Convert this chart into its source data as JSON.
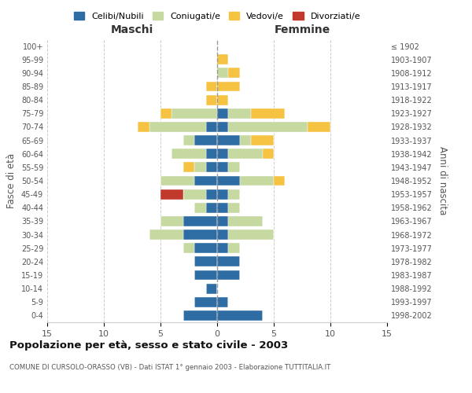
{
  "age_groups": [
    "0-4",
    "5-9",
    "10-14",
    "15-19",
    "20-24",
    "25-29",
    "30-34",
    "35-39",
    "40-44",
    "45-49",
    "50-54",
    "55-59",
    "60-64",
    "65-69",
    "70-74",
    "75-79",
    "80-84",
    "85-89",
    "90-94",
    "95-99",
    "100+"
  ],
  "birth_years": [
    "1998-2002",
    "1993-1997",
    "1988-1992",
    "1983-1987",
    "1978-1982",
    "1973-1977",
    "1968-1972",
    "1963-1967",
    "1958-1962",
    "1953-1957",
    "1948-1952",
    "1943-1947",
    "1938-1942",
    "1933-1937",
    "1928-1932",
    "1923-1927",
    "1918-1922",
    "1913-1917",
    "1908-1912",
    "1903-1907",
    "≤ 1902"
  ],
  "maschi": {
    "celibi": [
      3,
      2,
      1,
      2,
      2,
      2,
      3,
      3,
      1,
      1,
      2,
      1,
      1,
      2,
      1,
      0,
      0,
      0,
      0,
      0,
      0
    ],
    "coniugati": [
      0,
      0,
      0,
      0,
      0,
      1,
      3,
      2,
      1,
      2,
      3,
      1,
      3,
      1,
      5,
      4,
      0,
      0,
      0,
      0,
      0
    ],
    "vedovi": [
      0,
      0,
      0,
      0,
      0,
      0,
      0,
      0,
      0,
      0,
      0,
      1,
      0,
      0,
      1,
      1,
      1,
      1,
      0,
      0,
      0
    ],
    "divorziati": [
      0,
      0,
      0,
      0,
      0,
      0,
      0,
      0,
      0,
      2,
      0,
      0,
      0,
      0,
      0,
      0,
      0,
      0,
      0,
      0,
      0
    ]
  },
  "femmine": {
    "nubili": [
      4,
      1,
      0,
      2,
      2,
      1,
      1,
      1,
      1,
      1,
      2,
      1,
      1,
      2,
      1,
      1,
      0,
      0,
      0,
      0,
      0
    ],
    "coniugate": [
      0,
      0,
      0,
      0,
      0,
      1,
      4,
      3,
      1,
      1,
      3,
      1,
      3,
      1,
      7,
      2,
      0,
      0,
      1,
      0,
      0
    ],
    "vedove": [
      0,
      0,
      0,
      0,
      0,
      0,
      0,
      0,
      0,
      0,
      1,
      0,
      1,
      2,
      2,
      3,
      1,
      2,
      1,
      1,
      0
    ],
    "divorziate": [
      0,
      0,
      0,
      0,
      0,
      0,
      0,
      0,
      0,
      0,
      0,
      0,
      0,
      0,
      0,
      0,
      0,
      0,
      0,
      0,
      0
    ]
  },
  "colors": {
    "celibi": "#2e6da4",
    "coniugati": "#c5d9a0",
    "vedovi": "#f5c242",
    "divorziati": "#c0392b"
  },
  "xlim": 15,
  "title": "Popolazione per età, sesso e stato civile - 2003",
  "subtitle": "COMUNE DI CURSOLO-ORASSO (VB) - Dati ISTAT 1° gennaio 2003 - Elaborazione TUTTITALIA.IT",
  "xlabel_left": "Maschi",
  "xlabel_right": "Femmine",
  "ylabel_left": "Fasce di età",
  "ylabel_right": "Anni di nascita",
  "legend_labels": [
    "Celibi/Nubili",
    "Coniugati/e",
    "Vedovi/e",
    "Divorziati/e"
  ]
}
